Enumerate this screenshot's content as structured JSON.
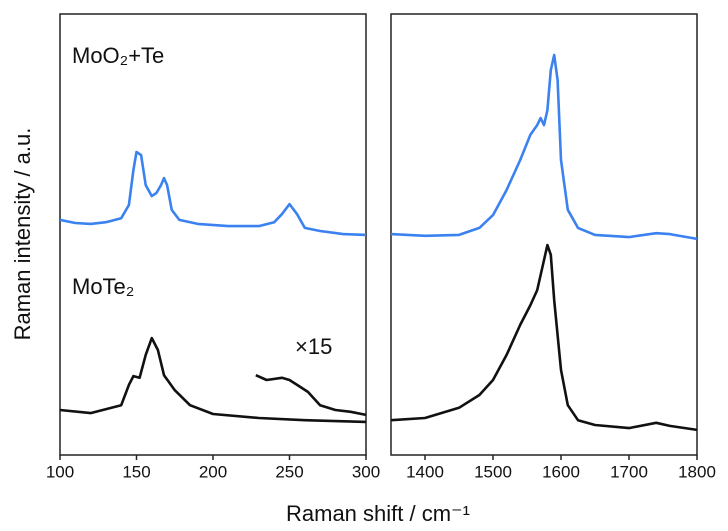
{
  "chart_data": [
    {
      "type": "line",
      "xlabel": "Raman shift / cm⁻¹",
      "ylabel": "Raman intensity / a.u.",
      "xlim": [
        100,
        300
      ],
      "xticks": [
        100,
        150,
        200,
        250,
        300
      ],
      "ylim": [
        0,
        100
      ],
      "series": [
        {
          "name": "MoO₂+Te",
          "color": "#3b82f0",
          "x": [
            100,
            110,
            120,
            130,
            140,
            145,
            148,
            150,
            153,
            156,
            160,
            163,
            166,
            168,
            170,
            173,
            178,
            190,
            210,
            230,
            240,
            245,
            250,
            255,
            260,
            270,
            285,
            300
          ],
          "values": [
            53.3,
            52.6,
            52.4,
            52.8,
            53.7,
            56.7,
            64.6,
            68.7,
            68.0,
            61.2,
            58.7,
            59.4,
            61.2,
            62.8,
            61.2,
            55.6,
            53.3,
            52.4,
            51.9,
            51.9,
            52.8,
            54.6,
            56.9,
            54.6,
            51.5,
            50.8,
            50.1,
            49.9
          ]
        },
        {
          "name": "MoTe₂",
          "color": "#111111",
          "x": [
            100,
            120,
            140,
            145,
            148,
            152,
            156,
            160,
            164,
            168,
            175,
            185,
            200,
            230,
            260,
            300
          ],
          "values": [
            10.2,
            9.5,
            11.3,
            15.9,
            17.9,
            17.5,
            22.7,
            26.5,
            23.8,
            18.1,
            14.7,
            11.3,
            9.3,
            8.4,
            7.9,
            7.5
          ]
        },
        {
          "name": "×15",
          "color": "#111111",
          "x": [
            228,
            235,
            245,
            250,
            255,
            262,
            270,
            280,
            290,
            300
          ],
          "values": [
            18.1,
            17.0,
            17.5,
            17.0,
            15.9,
            14.3,
            11.3,
            10.2,
            9.8,
            9.1
          ]
        }
      ]
    },
    {
      "type": "line",
      "xlim": [
        1350,
        1800
      ],
      "xticks": [
        1400,
        1500,
        1600,
        1700,
        1800
      ],
      "ylim": [
        0,
        100
      ],
      "series": [
        {
          "color": "#3b82f0",
          "x": [
            1350,
            1400,
            1450,
            1480,
            1500,
            1520,
            1540,
            1555,
            1565,
            1570,
            1575,
            1580,
            1585,
            1590,
            1595,
            1600,
            1610,
            1625,
            1650,
            1700,
            1740,
            1760,
            1800
          ],
          "values": [
            50.1,
            49.7,
            49.9,
            51.5,
            54.4,
            60.1,
            66.9,
            72.6,
            74.8,
            76.4,
            74.8,
            78.2,
            87.3,
            90.7,
            85.0,
            66.9,
            55.6,
            51.5,
            49.9,
            49.4,
            50.3,
            50.1,
            49.0
          ]
        },
        {
          "color": "#111111",
          "x": [
            1350,
            1400,
            1450,
            1480,
            1500,
            1520,
            1540,
            1555,
            1565,
            1575,
            1580,
            1585,
            1590,
            1600,
            1610,
            1625,
            1650,
            1700,
            1740,
            1760,
            1800
          ],
          "values": [
            7.9,
            8.4,
            10.7,
            13.6,
            17.0,
            22.7,
            29.5,
            34.0,
            37.4,
            44.2,
            47.6,
            45.4,
            35.1,
            19.3,
            11.3,
            7.9,
            6.8,
            6.1,
            7.3,
            6.6,
            5.7
          ]
        }
      ]
    }
  ]
}
